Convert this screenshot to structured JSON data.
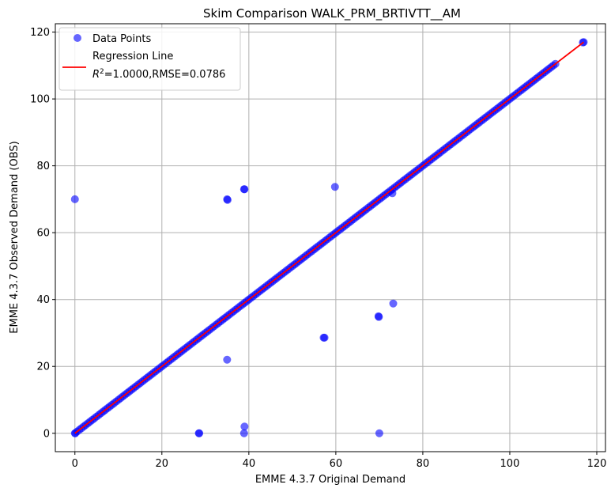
{
  "chart_data": {
    "type": "scatter",
    "title": "Skim Comparison WALK_PRM_BRTIVTT__AM",
    "xlabel": "EMME 4.3.7 Original Demand",
    "ylabel": "EMME 4.3.7 Observed Demand (OBS)",
    "xlim": [
      -4.5,
      122
    ],
    "ylim": [
      -5.5,
      122.5
    ],
    "xticks": [
      0,
      20,
      40,
      60,
      80,
      100,
      120
    ],
    "yticks": [
      0,
      20,
      40,
      60,
      80,
      100,
      120
    ],
    "grid": true,
    "legend": {
      "placement": "top-left",
      "entries": [
        {
          "label": "Data Points",
          "kind": "marker"
        },
        {
          "label": "Regression Line",
          "label_line2_prefix": "R",
          "label_line2_sup": "2",
          "label_line2_rest": "=1.0000,RMSE=0.0786",
          "kind": "line"
        }
      ]
    },
    "colors": {
      "points": "#0000ff",
      "regression": "#ff0000",
      "grid": "#b0b0b0"
    },
    "series": [
      {
        "name": "Data Points",
        "kind": "scatter",
        "x": [
          0.0,
          0.1,
          28.5,
          28.6,
          35.0,
          35.1,
          35.0,
          38.9,
          39.0,
          39.0,
          38.9,
          57.2,
          57.4,
          59.8,
          69.8,
          69.9,
          70.0,
          73.0,
          73.2
        ],
        "y": [
          70.0,
          0.0,
          0.0,
          0.0,
          70.0,
          69.8,
          22.0,
          73.0,
          73.0,
          2.0,
          0.0,
          28.6,
          28.6,
          73.7,
          35.0,
          34.8,
          0.0,
          71.8,
          38.8
        ]
      },
      {
        "name": "Data Points (diagonal band)",
        "kind": "band",
        "x_range": [
          0,
          110.5
        ],
        "slope": 1.0,
        "intercept": 0.0
      },
      {
        "name": "Data Points (top cluster)",
        "kind": "scatter",
        "x": [
          116.8,
          117.0
        ],
        "y": [
          116.9,
          117.0
        ]
      },
      {
        "name": "Regression Line",
        "kind": "line",
        "x": [
          0,
          117
        ],
        "y": [
          0,
          117
        ]
      }
    ]
  }
}
